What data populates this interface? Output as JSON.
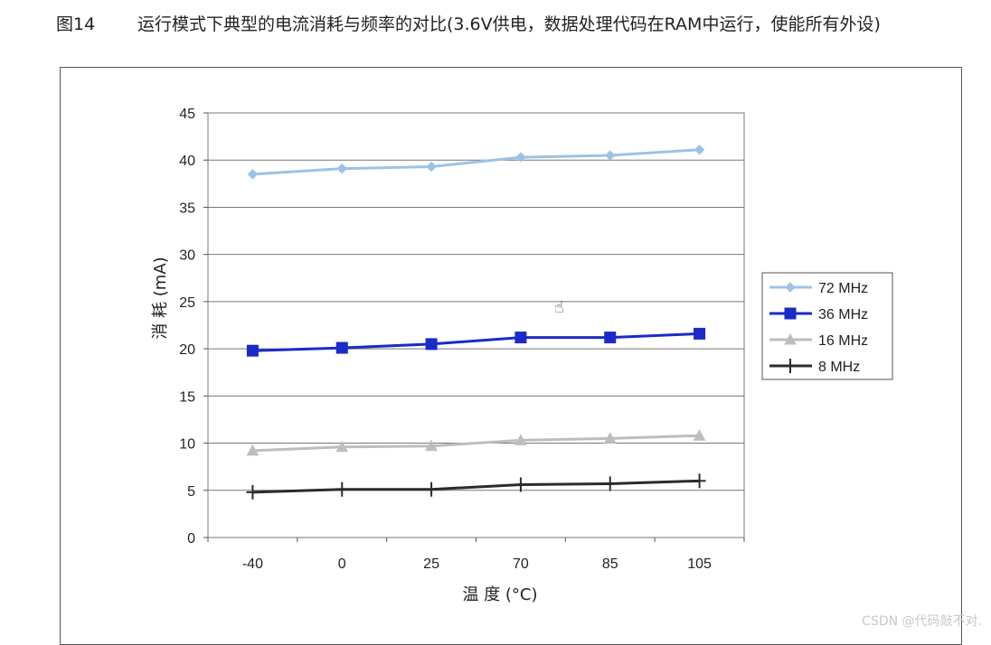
{
  "caption": {
    "figure_number": "图14",
    "title": "运行模式下典型的电流消耗与频率的对比(3.6V供电，数据处理代码在RAM中运行，使能所有外设)"
  },
  "chart_data": {
    "type": "line",
    "title": "",
    "xlabel": "温 度 (°C)",
    "ylabel": "消 耗 (mA)",
    "categories": [
      "-40",
      "0",
      "25",
      "70",
      "85",
      "105"
    ],
    "ylim": [
      0,
      45
    ],
    "yticks": [
      0,
      5,
      10,
      15,
      20,
      25,
      30,
      35,
      40,
      45
    ],
    "grid": "horizontal",
    "legend_position": "right",
    "series": [
      {
        "name": "72 MHz",
        "values": [
          38.5,
          39.1,
          39.3,
          40.3,
          40.5,
          41.1
        ],
        "color": "#9cc3e6",
        "marker": "diamond"
      },
      {
        "name": "36 MHz",
        "values": [
          19.8,
          20.1,
          20.5,
          21.2,
          21.2,
          21.6
        ],
        "color": "#1a2bc8",
        "marker": "square"
      },
      {
        "name": "16 MHz",
        "values": [
          9.2,
          9.6,
          9.7,
          10.3,
          10.5,
          10.8
        ],
        "color": "#bdbdbd",
        "marker": "triangle"
      },
      {
        "name": "8 MHz",
        "values": [
          4.8,
          5.1,
          5.1,
          5.6,
          5.7,
          6.0
        ],
        "color": "#2b2b2b",
        "marker": "cross"
      }
    ]
  },
  "watermark": "CSDN @代码敲不对."
}
